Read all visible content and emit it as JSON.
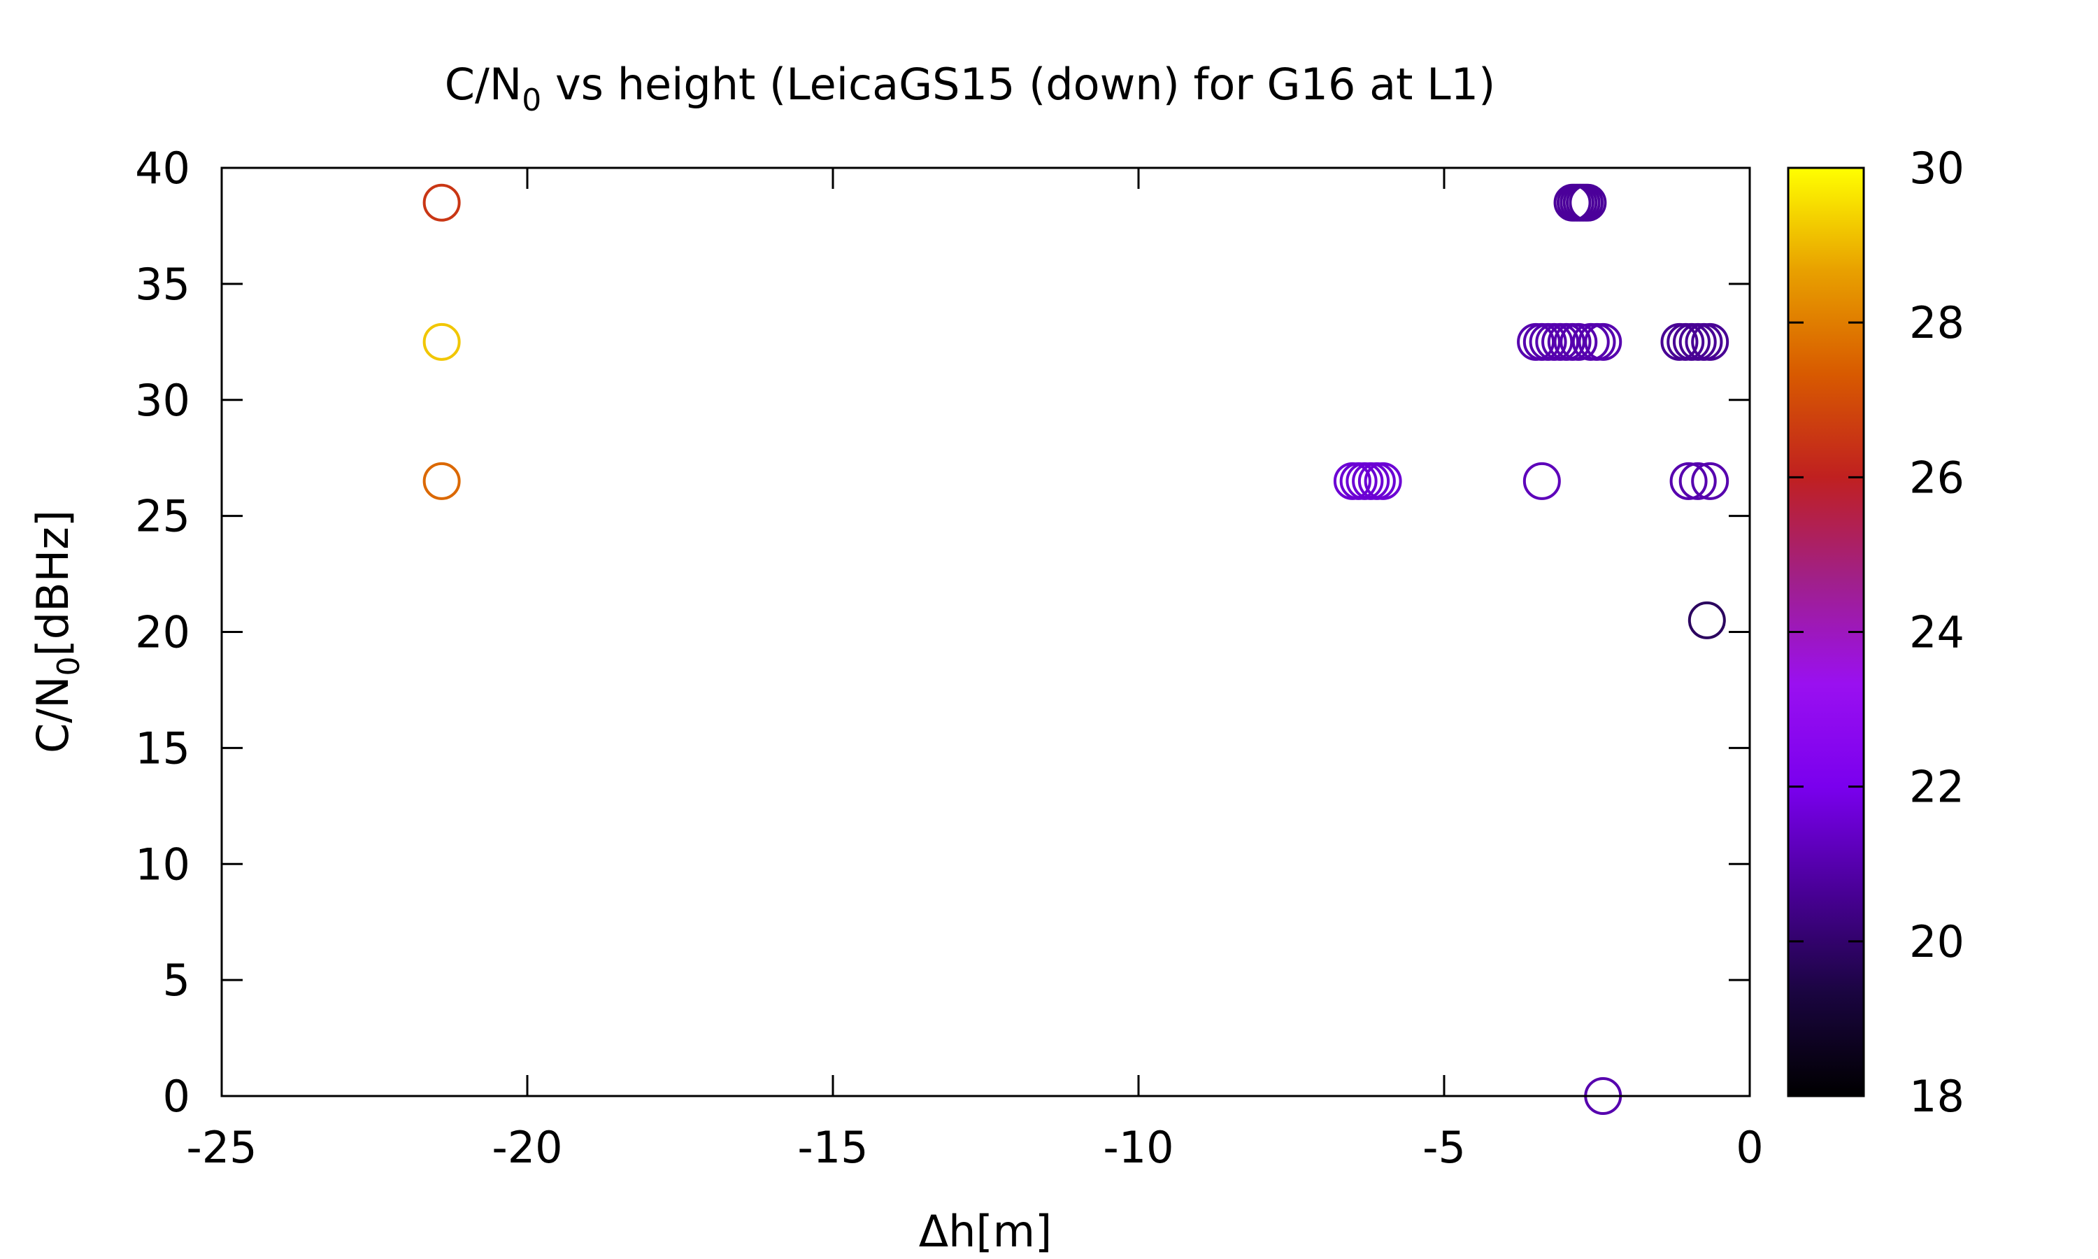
{
  "chart_data": {
    "type": "scatter",
    "title": {
      "prefix": "C/N",
      "sub": "0",
      "suffix": " vs height (LeicaGS15 (down) for G16 at L1)"
    },
    "xlabel": "Δh[m]",
    "ylabel": {
      "prefix": "C/N",
      "sub": "0",
      "suffix": "[dBHz]"
    },
    "xlim": [
      -25,
      0
    ],
    "ylim": [
      0,
      40
    ],
    "xticks": [
      -25,
      -20,
      -15,
      -10,
      -5,
      0
    ],
    "xtick_labels": [
      "-25",
      "-20",
      "-15",
      "-10",
      "-5",
      "0"
    ],
    "yticks": [
      0,
      5,
      10,
      15,
      20,
      25,
      30,
      35,
      40
    ],
    "ytick_labels": [
      "0",
      "5",
      "10",
      "15",
      "20",
      "25",
      "30",
      "35",
      "40"
    ],
    "colorbar": {
      "range": [
        18,
        30
      ],
      "ticks": [
        18,
        20,
        22,
        24,
        26,
        28,
        30
      ],
      "tick_labels": [
        "18",
        "20",
        "22",
        "24",
        "26",
        "28",
        "30"
      ],
      "palette": [
        "#000000",
        "#1a0540",
        "#4a0098",
        "#7a00ee",
        "#9a10f0",
        "#a0208a",
        "#c02020",
        "#d85a00",
        "#e8a000",
        "#ffff00"
      ]
    },
    "marker": "open-circle",
    "points": [
      {
        "x": -21.4,
        "y": 38.5,
        "c": 26.5
      },
      {
        "x": -21.4,
        "y": 32.5,
        "c": 29.2
      },
      {
        "x": -21.4,
        "y": 26.5,
        "c": 27.6
      },
      {
        "x": -2.9,
        "y": 38.5,
        "c": 20.7
      },
      {
        "x": -2.85,
        "y": 38.5,
        "c": 20.7
      },
      {
        "x": -2.8,
        "y": 38.5,
        "c": 20.7
      },
      {
        "x": -2.75,
        "y": 38.5,
        "c": 20.7
      },
      {
        "x": -2.7,
        "y": 38.5,
        "c": 20.7
      },
      {
        "x": -2.65,
        "y": 38.5,
        "c": 20.7
      },
      {
        "x": -3.5,
        "y": 32.5,
        "c": 21.0
      },
      {
        "x": -3.4,
        "y": 32.5,
        "c": 21.0
      },
      {
        "x": -3.3,
        "y": 32.5,
        "c": 21.0
      },
      {
        "x": -3.2,
        "y": 32.5,
        "c": 21.0
      },
      {
        "x": -3.1,
        "y": 32.5,
        "c": 21.0
      },
      {
        "x": -3.0,
        "y": 32.5,
        "c": 21.0
      },
      {
        "x": -2.9,
        "y": 32.5,
        "c": 21.0
      },
      {
        "x": -2.8,
        "y": 32.5,
        "c": 21.0
      },
      {
        "x": -2.6,
        "y": 32.5,
        "c": 21.0
      },
      {
        "x": -2.5,
        "y": 32.5,
        "c": 21.0
      },
      {
        "x": -2.4,
        "y": 32.5,
        "c": 21.0
      },
      {
        "x": -1.15,
        "y": 32.5,
        "c": 20.6
      },
      {
        "x": -1.05,
        "y": 32.5,
        "c": 20.6
      },
      {
        "x": -0.95,
        "y": 32.5,
        "c": 20.6
      },
      {
        "x": -0.85,
        "y": 32.5,
        "c": 20.6
      },
      {
        "x": -0.75,
        "y": 32.5,
        "c": 20.6
      },
      {
        "x": -0.65,
        "y": 32.5,
        "c": 20.6
      },
      {
        "x": -6.5,
        "y": 26.5,
        "c": 21.6
      },
      {
        "x": -6.4,
        "y": 26.5,
        "c": 21.6
      },
      {
        "x": -6.3,
        "y": 26.5,
        "c": 21.6
      },
      {
        "x": -6.2,
        "y": 26.5,
        "c": 21.6
      },
      {
        "x": -6.1,
        "y": 26.5,
        "c": 21.6
      },
      {
        "x": -6.0,
        "y": 26.5,
        "c": 21.6
      },
      {
        "x": -3.4,
        "y": 26.5,
        "c": 21.2
      },
      {
        "x": -1.0,
        "y": 26.5,
        "c": 21.0
      },
      {
        "x": -0.85,
        "y": 26.5,
        "c": 21.0
      },
      {
        "x": -0.65,
        "y": 26.5,
        "c": 21.0
      },
      {
        "x": -0.7,
        "y": 20.5,
        "c": 19.8
      },
      {
        "x": -2.4,
        "y": 0.0,
        "c": 21.0
      }
    ]
  }
}
